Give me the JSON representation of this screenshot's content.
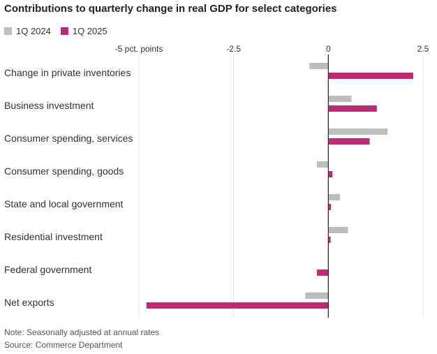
{
  "chart_data": {
    "type": "bar",
    "orientation": "horizontal",
    "title": "Contributions to quarterly change in real GDP for select categories",
    "categories": [
      "Change in private inventories",
      "Business investment",
      "Consumer spending, services",
      "Consumer spending, goods",
      "State and local government",
      "Residential investment",
      "Federal government",
      "Net exports"
    ],
    "series": [
      {
        "name": "1Q 2024",
        "color": "#bdbdbd",
        "values": [
          -0.5,
          0.61,
          1.56,
          -0.3,
          0.31,
          0.52,
          0.0,
          -0.61
        ]
      },
      {
        "name": "1Q 2025",
        "color": "#bc2c74",
        "values": [
          2.24,
          1.28,
          1.09,
          0.11,
          0.07,
          0.06,
          -0.3,
          -4.8
        ]
      }
    ],
    "xlim": [
      -5,
      2.5
    ],
    "ticks": [
      -5,
      -2.5,
      0,
      2.5
    ],
    "tick_labels": [
      "-5 pct. points",
      "-2.5",
      "0",
      "2.5"
    ],
    "grid": true,
    "legend": "top-left"
  },
  "notes": {
    "note": "Note: Seasonally adjusted at annual rates",
    "source": "Source: Commerce Department"
  }
}
